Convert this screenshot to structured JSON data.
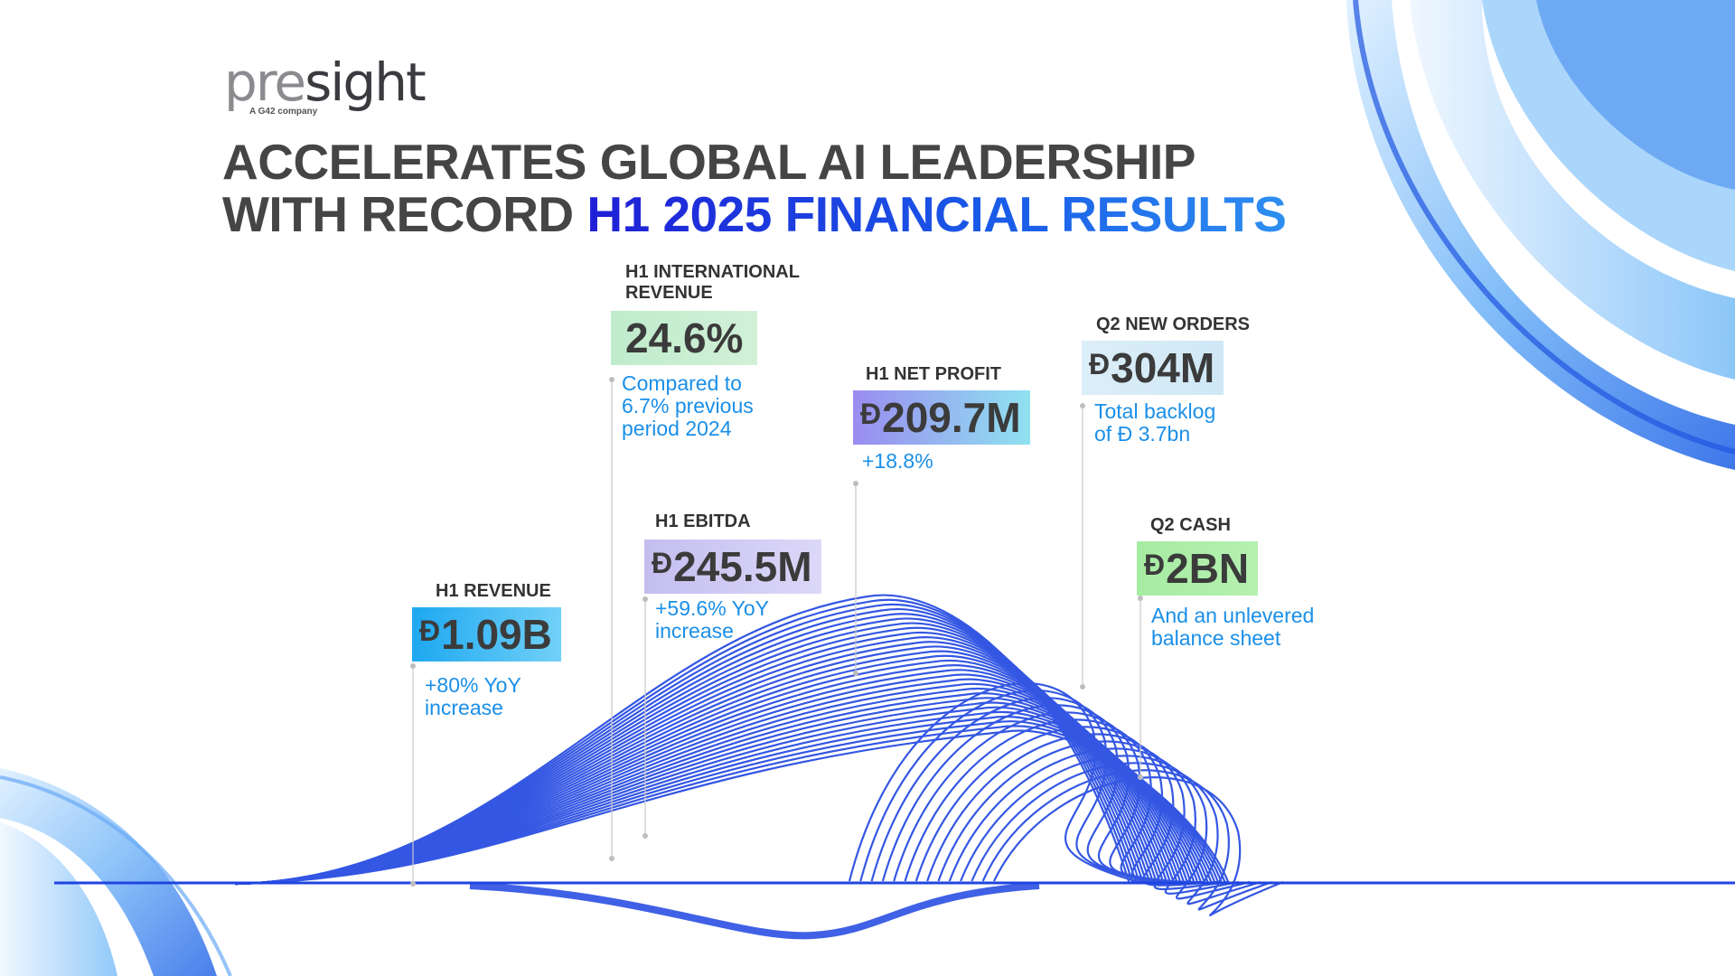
{
  "brand": {
    "logo_pre": "pre",
    "logo_sight": "sight",
    "tagline": "A G42 company"
  },
  "headline": {
    "line1": "ACCELERATES GLOBAL AI LEADERSHIP",
    "line2_plain": "WITH RECORD",
    "line2_highlight": "H1 2025 FINANCIAL RESULTS"
  },
  "currency_symbol": "Đ",
  "stats": {
    "revenue": {
      "label": "H1 REVENUE",
      "value": "1.09B",
      "desc": [
        "+80% YoY",
        "increase"
      ]
    },
    "intl_revenue": {
      "label": [
        "H1 INTERNATIONAL",
        "REVENUE"
      ],
      "value": "24.6%",
      "desc": [
        "Compared to",
        "6.7% previous",
        "period 2024"
      ]
    },
    "ebitda": {
      "label": "H1 EBITDA",
      "value": "245.5M",
      "desc": [
        "+59.6% YoY",
        "increase"
      ]
    },
    "net_profit": {
      "label": "H1 NET PROFIT",
      "value": "209.7M",
      "desc": [
        "+18.8%"
      ]
    },
    "new_orders": {
      "label": "Q2 NEW ORDERS",
      "value": "304M",
      "desc": [
        "Total backlog",
        "of Đ 3.7bn"
      ]
    },
    "cash": {
      "label": "Q2 CASH",
      "value": "2BN",
      "desc": [
        "And an unlevered",
        "balance sheet"
      ]
    }
  },
  "colors": {
    "headline_gray": "#454545",
    "accent_blue": "#1a8fe8",
    "wave_blue": "#1f45e0"
  }
}
